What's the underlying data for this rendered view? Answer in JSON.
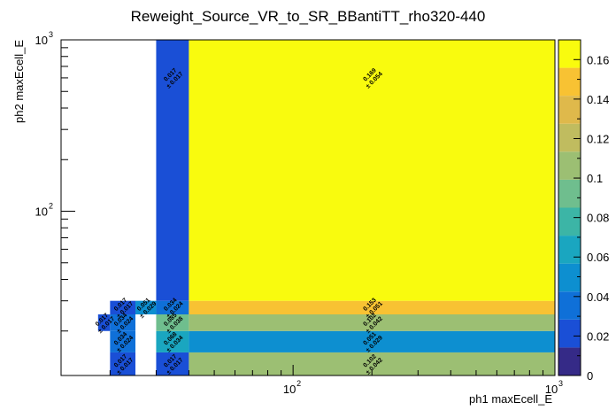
{
  "chart_data": {
    "type": "heatmap",
    "title": "Reweight_Source_VR_to_SR_BBantiTT_rho320-440",
    "xlabel": "ph1 maxEcell_E",
    "ylabel": "ph2 maxEcell_E",
    "x_scale": "log",
    "y_scale": "log",
    "xlim": [
      13,
      1000
    ],
    "ylim": [
      11,
      1000
    ],
    "x_ticks": [
      {
        "value": 100,
        "base": "10",
        "exp": "2"
      },
      {
        "value": 1000,
        "base": "10",
        "exp": "3"
      }
    ],
    "y_ticks": [
      {
        "value": 100,
        "base": "10",
        "exp": "2"
      },
      {
        "value": 1000,
        "base": "10",
        "exp": "3"
      }
    ],
    "zlim": [
      0,
      0.17
    ],
    "z_ticks": [
      "0",
      "0.02",
      "0.04",
      "0.06",
      "0.08",
      "0.1",
      "0.12",
      "0.14",
      "0.16"
    ],
    "colormap": [
      "#352a87",
      "#1a4fd6",
      "#0f70d8",
      "#0d8fd0",
      "#1aa6c0",
      "#3cb5a6",
      "#6fbe8e",
      "#9cbf73",
      "#c0bc5f",
      "#dfb94b",
      "#f8c233",
      "#f9fb0e"
    ],
    "cells": [
      {
        "x0": 20,
        "x1": 25,
        "y0": 11,
        "y1": 15,
        "value": 0.017,
        "label": "0.017",
        "err": "± 0.017"
      },
      {
        "x0": 20,
        "x1": 25,
        "y0": 15,
        "y1": 20,
        "value": 0.034,
        "label": "0.034",
        "err": "± 0.024"
      },
      {
        "x0": 18,
        "x1": 20,
        "y0": 20,
        "y1": 25,
        "value": 0.017,
        "label": "0.017",
        "err": "± 0.017"
      },
      {
        "x0": 20,
        "x1": 25,
        "y0": 20,
        "y1": 25,
        "value": 0.034,
        "label": "0.034",
        "err": "± 0.024"
      },
      {
        "x0": 20,
        "x1": 25,
        "y0": 25,
        "y1": 30,
        "value": 0.017,
        "label": "0.017",
        "err": "± 0.017"
      },
      {
        "x0": 25,
        "x1": 30,
        "y0": 25,
        "y1": 30,
        "value": 0.051,
        "label": "0.051",
        "err": "± 0.029"
      },
      {
        "x0": 30,
        "x1": 40,
        "y0": 11,
        "y1": 15,
        "value": 0.017,
        "label": "0.017",
        "err": "± 0.017"
      },
      {
        "x0": 30,
        "x1": 40,
        "y0": 15,
        "y1": 20,
        "value": 0.068,
        "label": "0.068",
        "err": "± 0.034"
      },
      {
        "x0": 30,
        "x1": 40,
        "y0": 20,
        "y1": 25,
        "value": 0.085,
        "label": "0.085",
        "err": "± 0.038"
      },
      {
        "x0": 30,
        "x1": 40,
        "y0": 25,
        "y1": 30,
        "value": 0.034,
        "label": "0.034",
        "err": "± 0.024"
      },
      {
        "x0": 30,
        "x1": 40,
        "y0": 30,
        "y1": 1000,
        "value": 0.017,
        "label": "0.017",
        "err": "± 0.017"
      },
      {
        "x0": 40,
        "x1": 1000,
        "y0": 11,
        "y1": 15,
        "value": 0.102,
        "label": "0.102",
        "err": "± 0.042"
      },
      {
        "x0": 40,
        "x1": 1000,
        "y0": 15,
        "y1": 20,
        "value": 0.051,
        "label": "0.051",
        "err": "± 0.029"
      },
      {
        "x0": 40,
        "x1": 1000,
        "y0": 20,
        "y1": 25,
        "value": 0.102,
        "label": "0.102",
        "err": "± 0.042"
      },
      {
        "x0": 40,
        "x1": 1000,
        "y0": 25,
        "y1": 30,
        "value": 0.153,
        "label": "0.153",
        "err": "± 0.051"
      },
      {
        "x0": 40,
        "x1": 1000,
        "y0": 30,
        "y1": 1000,
        "value": 0.169,
        "label": "0.169",
        "err": "± 0.054"
      }
    ]
  }
}
